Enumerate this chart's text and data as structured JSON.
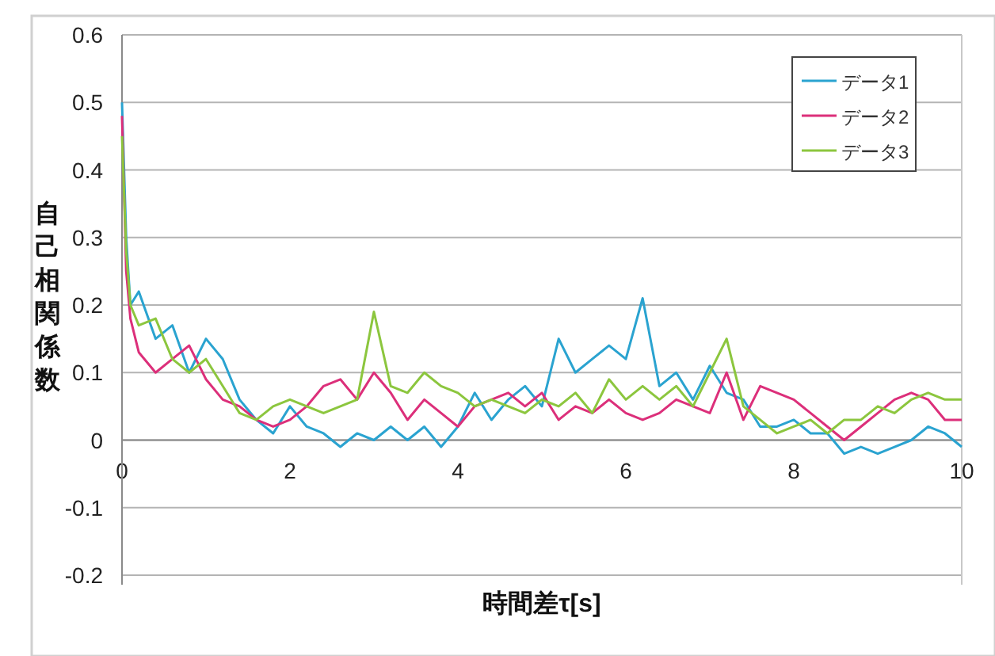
{
  "chart_data": {
    "type": "line",
    "xlabel": "時間差τ[s]",
    "ylabel": "自己相関係数",
    "x": [
      0,
      0.05,
      0.1,
      0.2,
      0.4,
      0.6,
      0.8,
      1.0,
      1.2,
      1.4,
      1.6,
      1.8,
      2.0,
      2.2,
      2.4,
      2.6,
      2.8,
      3.0,
      3.2,
      3.4,
      3.6,
      3.8,
      4.0,
      4.2,
      4.4,
      4.6,
      4.8,
      5.0,
      5.2,
      5.4,
      5.6,
      5.8,
      6.0,
      6.2,
      6.4,
      6.6,
      6.8,
      7.0,
      7.2,
      7.4,
      7.6,
      7.8,
      8.0,
      8.2,
      8.4,
      8.6,
      8.8,
      9.0,
      9.2,
      9.4,
      9.6,
      9.8,
      10
    ],
    "series": [
      {
        "name": "データ1",
        "color": "#2aa3d0",
        "values": [
          0.5,
          0.3,
          0.2,
          0.22,
          0.15,
          0.17,
          0.1,
          0.15,
          0.12,
          0.06,
          0.03,
          0.01,
          0.05,
          0.02,
          0.01,
          -0.01,
          0.01,
          0.0,
          0.02,
          0.0,
          0.02,
          -0.01,
          0.02,
          0.07,
          0.03,
          0.06,
          0.08,
          0.05,
          0.15,
          0.1,
          0.12,
          0.14,
          0.12,
          0.21,
          0.08,
          0.1,
          0.06,
          0.11,
          0.07,
          0.06,
          0.02,
          0.02,
          0.03,
          0.01,
          0.01,
          -0.02,
          -0.01,
          -0.02,
          -0.01,
          0.0,
          0.02,
          0.01,
          -0.01
        ]
      },
      {
        "name": "データ2",
        "color": "#dc2f7a",
        "values": [
          0.48,
          0.25,
          0.18,
          0.13,
          0.1,
          0.12,
          0.14,
          0.09,
          0.06,
          0.05,
          0.03,
          0.02,
          0.03,
          0.05,
          0.08,
          0.09,
          0.06,
          0.1,
          0.07,
          0.03,
          0.06,
          0.04,
          0.02,
          0.05,
          0.06,
          0.07,
          0.05,
          0.07,
          0.03,
          0.05,
          0.04,
          0.06,
          0.04,
          0.03,
          0.04,
          0.06,
          0.05,
          0.04,
          0.1,
          0.03,
          0.08,
          0.07,
          0.06,
          0.04,
          0.02,
          0.0,
          0.02,
          0.04,
          0.06,
          0.07,
          0.06,
          0.03,
          0.03
        ]
      },
      {
        "name": "データ3",
        "color": "#8cc63e",
        "values": [
          0.45,
          0.28,
          0.2,
          0.17,
          0.18,
          0.12,
          0.1,
          0.12,
          0.08,
          0.04,
          0.03,
          0.05,
          0.06,
          0.05,
          0.04,
          0.05,
          0.06,
          0.19,
          0.08,
          0.07,
          0.1,
          0.08,
          0.07,
          0.05,
          0.06,
          0.05,
          0.04,
          0.06,
          0.05,
          0.07,
          0.04,
          0.09,
          0.06,
          0.08,
          0.06,
          0.08,
          0.05,
          0.1,
          0.15,
          0.05,
          0.03,
          0.01,
          0.02,
          0.03,
          0.01,
          0.03,
          0.03,
          0.05,
          0.04,
          0.06,
          0.07,
          0.06,
          0.06
        ]
      }
    ],
    "xlim": [
      0,
      10
    ],
    "xticks": [
      0,
      2,
      4,
      6,
      8,
      10
    ],
    "ylim": [
      -0.2,
      0.6
    ],
    "yticks": [
      -0.2,
      -0.1,
      0,
      0.1,
      0.2,
      0.3,
      0.4,
      0.5,
      0.6
    ],
    "grid": "y",
    "legend": "top right",
    "marker": "none",
    "line_style": "solid"
  }
}
